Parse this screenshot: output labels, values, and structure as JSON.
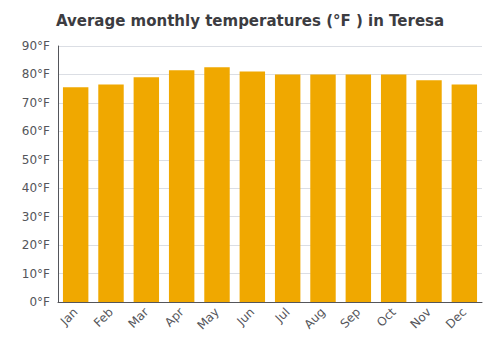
{
  "chart_data": {
    "type": "bar",
    "title": "Average monthly temperatures (°F ) in Teresa",
    "categories": [
      "Jan",
      "Feb",
      "Mar",
      "Apr",
      "May",
      "Jun",
      "Jul",
      "Aug",
      "Sep",
      "Oct",
      "Nov",
      "Dec"
    ],
    "values": [
      75.5,
      76.5,
      79.0,
      81.5,
      82.5,
      81.0,
      80.0,
      80.0,
      80.0,
      80.0,
      78.0,
      76.5
    ],
    "color": "#F0A800",
    "ylim": [
      0,
      90
    ],
    "yticks": [
      {
        "value": 0,
        "label": "0°F"
      },
      {
        "value": 10,
        "label": "10°F"
      },
      {
        "value": 20,
        "label": "20°F"
      },
      {
        "value": 30,
        "label": "30°F"
      },
      {
        "value": 40,
        "label": "40°F"
      },
      {
        "value": 50,
        "label": "50°F"
      },
      {
        "value": 60,
        "label": "60°F"
      },
      {
        "value": 70,
        "label": "70°F"
      },
      {
        "value": 80,
        "label": "80°F"
      },
      {
        "value": 90,
        "label": "90°F"
      }
    ],
    "grid": true
  }
}
